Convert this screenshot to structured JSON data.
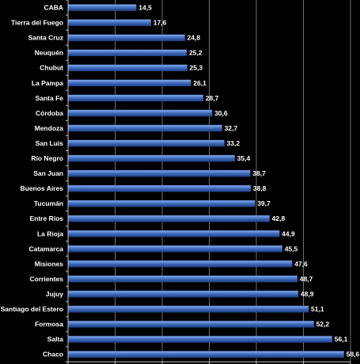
{
  "chart_data": {
    "type": "bar",
    "orientation": "horizontal",
    "categories": [
      "CABA",
      "Tierra del Fuego",
      "Santa Cruz",
      "Neuquén",
      "Chubut",
      "La Pampa",
      "Santa Fe",
      "Córdoba",
      "Mendoza",
      "San Luis",
      "Río Negro",
      "San Juan",
      "Buenos Aires",
      "Tucumán",
      "Entre Ríos",
      "La Rioja",
      "Catamarca",
      "Misiones",
      "Corrientes",
      "Jujuy",
      "Santiago del Estero",
      "Formosa",
      "Salta",
      "Chaco"
    ],
    "values": [
      14.5,
      17.6,
      24.8,
      25.2,
      25.3,
      26.1,
      28.7,
      30.6,
      32.7,
      33.2,
      35.4,
      38.7,
      38.8,
      39.7,
      42.8,
      44.9,
      45.5,
      47.6,
      48.7,
      48.9,
      51.1,
      52.2,
      56.1,
      58.6
    ],
    "value_labels": [
      "14,5",
      "17,6",
      "24,8",
      "25,2",
      "25,3",
      "26,1",
      "28,7",
      "30,6",
      "32,7",
      "33,2",
      "35,4",
      "38,7",
      "38,8",
      "39,7",
      "42,8",
      "44,9",
      "45,5",
      "47,6",
      "48,7",
      "48,9",
      "51,1",
      "52,2",
      "56,1",
      "58,6"
    ],
    "xlim": [
      0,
      60
    ],
    "grid": true,
    "bar_color": "#4472c4",
    "background": "#000000"
  }
}
